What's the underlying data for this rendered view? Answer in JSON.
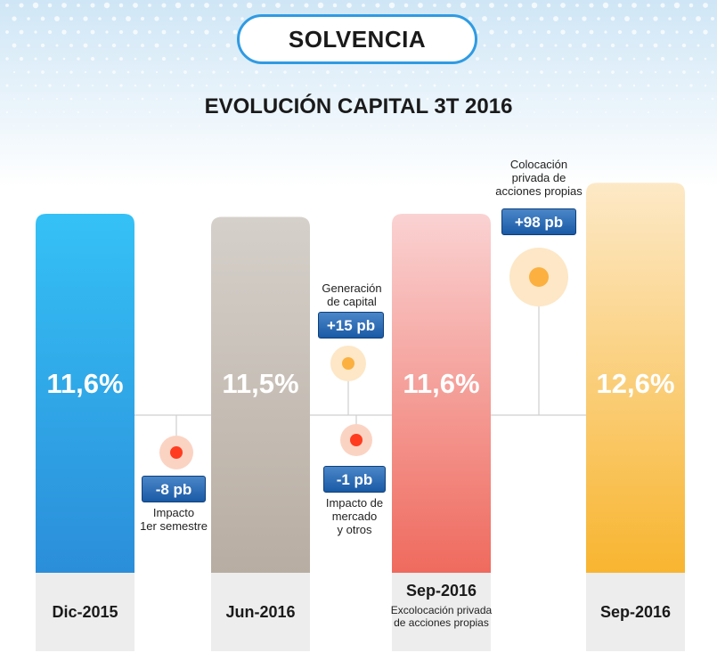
{
  "header": {
    "section_label": "SOLVENCIA",
    "title": "EVOLUCIÓN CAPITAL 3T 2016"
  },
  "chart_data": {
    "type": "bar",
    "title": "EVOLUCIÓN CAPITAL 3T 2016",
    "categories": [
      "Dic-2015",
      "Jun-2016",
      "Sep-2016",
      "Sep-2016"
    ],
    "category_notes": [
      "",
      "",
      "Excolocación privada de acciones propias",
      ""
    ],
    "values": [
      11.6,
      11.5,
      11.6,
      12.6
    ],
    "value_labels": [
      "11,6%",
      "11,5%",
      "11,6%",
      "12,6%"
    ],
    "unit": "%",
    "colors": [
      "#2f9be3",
      "#c7bfb5",
      "#f27f74",
      "#fbbd44"
    ],
    "bridges": [
      {
        "value": "-8 pb",
        "label": "Impacto 1er semestre",
        "label_lines": [
          "Impacto",
          "1er semestre"
        ],
        "direction": "down",
        "color": "#ff3c1f"
      },
      {
        "value": "+15 pb",
        "label": "Generación de capital",
        "label_lines": [
          "Generación",
          "de capital"
        ],
        "direction": "up",
        "color": "#fbb040"
      },
      {
        "value": "-1 pb",
        "label": "Impacto de mercado y otros",
        "label_lines": [
          "Impacto de",
          "mercado",
          "y otros"
        ],
        "direction": "down",
        "color": "#ff3c1f"
      },
      {
        "value": "+98 pb",
        "label": "Colocación privada de acciones propias",
        "label_lines": [
          "Colocación",
          "privada de",
          "acciones propias"
        ],
        "direction": "up",
        "color": "#fbb040"
      }
    ]
  }
}
